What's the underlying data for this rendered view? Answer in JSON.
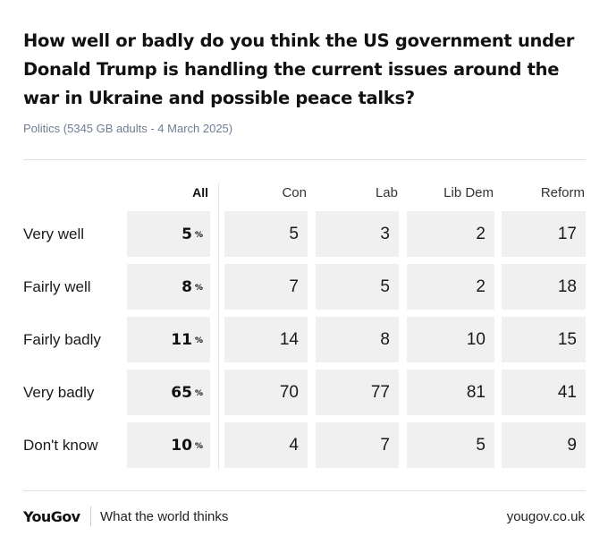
{
  "title": "How well or badly do you think the US government under Donald Trump is handling the current issues around the war in Ukraine and possible peace talks?",
  "subtitle": "Politics (5345 GB adults - 4 March 2025)",
  "footer": {
    "logo": "YouGov",
    "tagline": "What the world thinks",
    "url": "yougov.co.uk"
  },
  "chart_data": {
    "type": "table",
    "columns": [
      "All",
      "Con",
      "Lab",
      "Lib Dem",
      "Reform"
    ],
    "pct_symbol": "%",
    "rows": [
      {
        "label": "Very well",
        "values": [
          "5",
          "5",
          "3",
          "2",
          "17"
        ]
      },
      {
        "label": "Fairly well",
        "values": [
          "8",
          "7",
          "5",
          "2",
          "18"
        ]
      },
      {
        "label": "Fairly badly",
        "values": [
          "11",
          "14",
          "8",
          "10",
          "15"
        ]
      },
      {
        "label": "Very badly",
        "values": [
          "65",
          "70",
          "77",
          "81",
          "41"
        ]
      },
      {
        "label": "Don't know",
        "values": [
          "10",
          "4",
          "7",
          "5",
          "9"
        ]
      }
    ]
  }
}
